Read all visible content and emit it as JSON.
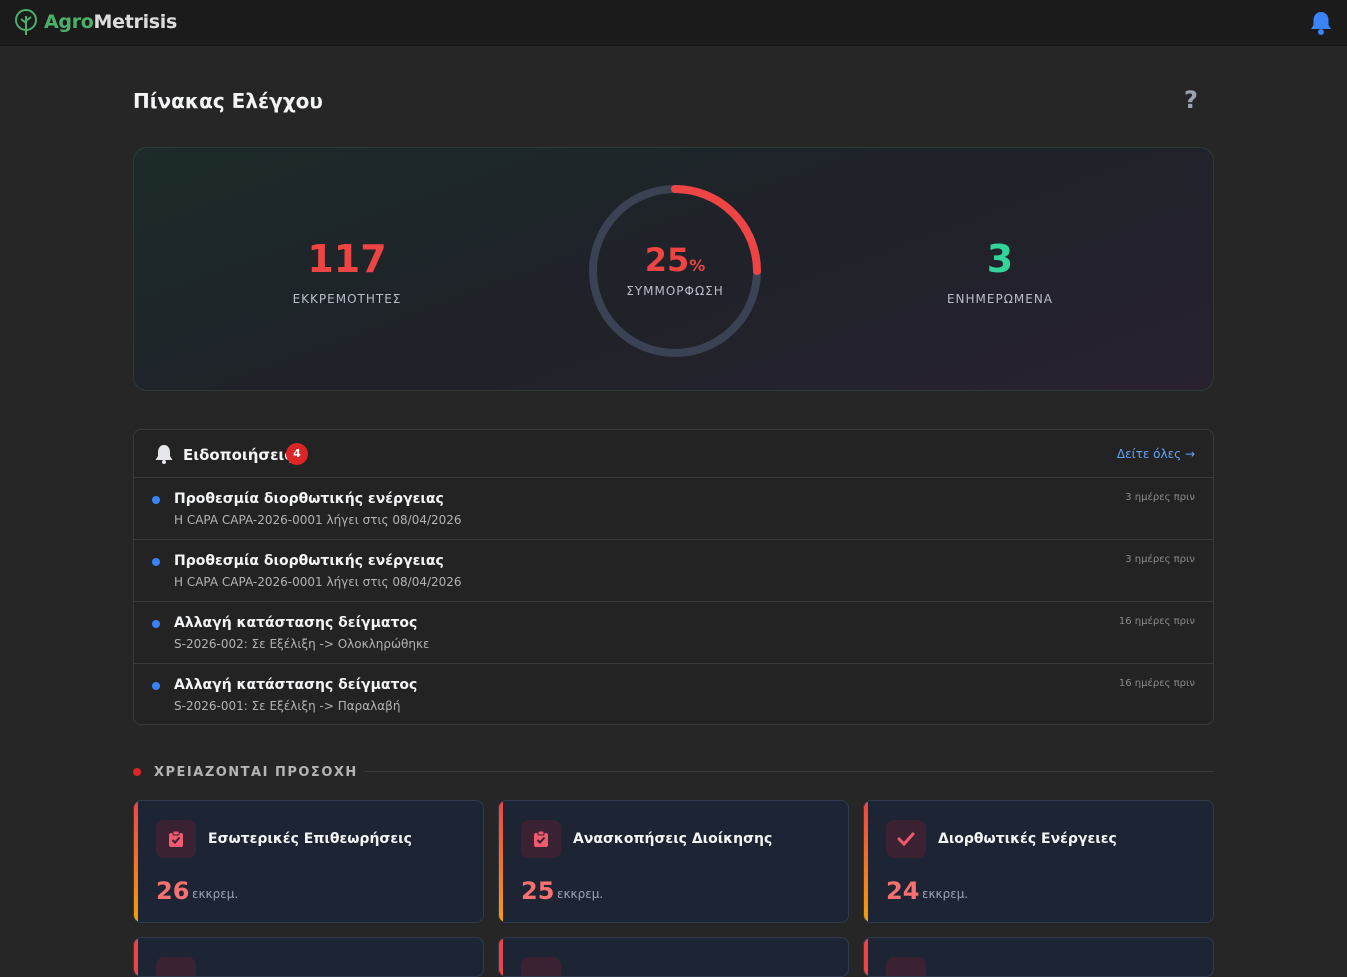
{
  "app": {
    "brand_prefix": "Agro",
    "brand_suffix": "Metrisis",
    "icons": {
      "logo": "tree-icon",
      "notifications": "bell-icon"
    }
  },
  "page": {
    "title": "Πίνακας Ελέγχου",
    "help_label": "?"
  },
  "summary": {
    "pending_value": "117",
    "pending_label": "ΕΚΚΡΕΜΟΤΗΤΕΣ",
    "compliance_value": "25",
    "compliance_unit": "%",
    "compliance_fraction": 0.25,
    "compliance_label": "ΣΥΜΜΟΡΦΩΣΗ",
    "updated_value": "3",
    "updated_label": "ΕΝΗΜΕΡΩΜΕΝΑ",
    "colors": {
      "pending": "#ef4444",
      "compliance": "#ef4444",
      "updated": "#34d399"
    }
  },
  "notifications": {
    "title": "Ειδοποιήσεις",
    "badge": "4",
    "see_all": "Δείτε όλες →",
    "items": [
      {
        "title": "Προθεσμία διορθωτικής ενέργειας",
        "subtitle": "Η CAPA CAPA-2026-0001 λήγει στις 08/04/2026",
        "time": "3 ημέρες πριν"
      },
      {
        "title": "Προθεσμία διορθωτικής ενέργειας",
        "subtitle": "Η CAPA CAPA-2026-0001 λήγει στις 08/04/2026",
        "time": "3 ημέρες πριν"
      },
      {
        "title": "Αλλαγή κατάστασης δείγματος",
        "subtitle": "S-2026-002: Σε Εξέλιξη -> Ολοκληρώθηκε",
        "time": "16 ημέρες πριν"
      },
      {
        "title": "Αλλαγή κατάστασης δείγματος",
        "subtitle": "S-2026-001: Σε Εξέλιξη -> Παραλαβή",
        "time": "16 ημέρες πριν"
      }
    ]
  },
  "attention": {
    "title": "ΧΡΕΙΑΖΟΝΤΑΙ ΠΡΟΣΟΧΗ",
    "cards": [
      {
        "title": "Εσωτερικές Επιθεωρήσεις",
        "count": "26",
        "unit": "εκκρεμ.",
        "icon": "clipboard-check-icon"
      },
      {
        "title": "Ανασκοπήσεις Διοίκησης",
        "count": "25",
        "unit": "εκκρεμ.",
        "icon": "clipboard-check-icon"
      },
      {
        "title": "Διορθωτικές Ενέργειες",
        "count": "24",
        "unit": "εκκρεμ.",
        "icon": "checkmark-icon"
      }
    ]
  }
}
